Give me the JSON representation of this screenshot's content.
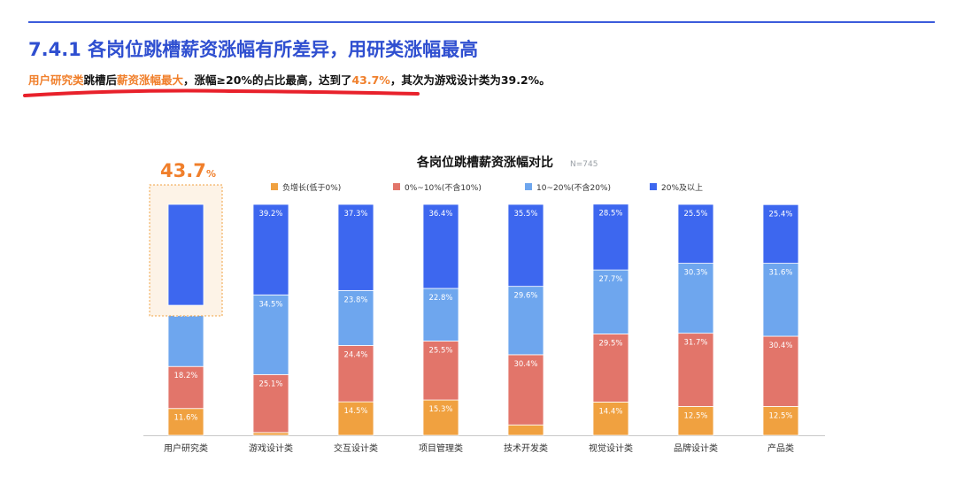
{
  "page": {
    "heading": "7.4.1 各岗位跳槽薪资涨幅有所差异，用研类涨幅最高",
    "subtitle": {
      "part1": "用户研究类",
      "part2": "跳槽后",
      "part3": "薪资涨幅最大",
      "part4": "，涨幅≥20%的占比最高，达到了",
      "part5": "43.7%",
      "part6": "，其次为游戏设计类为39.2%。"
    }
  },
  "colors": {
    "accent": "#2f4fd0",
    "highlight": "#f07f2b",
    "underline": "#e8212b",
    "series": [
      "#f0a140",
      "#e2756a",
      "#6ea6ee",
      "#3d67ef"
    ]
  },
  "chart_data": {
    "type": "bar",
    "stacked": true,
    "title": "各岗位跳槽薪资涨幅对比",
    "note": "N=745",
    "legend_position": "top",
    "categories": [
      "用户研究类",
      "游戏设计类",
      "交互设计类",
      "项目管理类",
      "技术开发类",
      "视觉设计类",
      "品牌设计类",
      "产品类"
    ],
    "series": [
      {
        "name": "负增长(低于0%)",
        "values": [
          11.6,
          1.2,
          14.5,
          15.3,
          4.5,
          14.4,
          12.5,
          12.5
        ]
      },
      {
        "name": "0%~10%(不含10%)",
        "values": [
          18.2,
          25.1,
          24.4,
          25.5,
          30.4,
          29.5,
          31.7,
          30.4
        ]
      },
      {
        "name": "10~20%(不含20%)",
        "values": [
          26.5,
          34.5,
          23.8,
          22.8,
          29.6,
          27.7,
          30.3,
          31.6
        ]
      },
      {
        "name": "20%及以上",
        "values": [
          43.7,
          39.2,
          37.3,
          36.4,
          35.5,
          28.5,
          25.5,
          25.4
        ]
      }
    ],
    "data_labels": [
      [
        "11.6%",
        "1.2%",
        "14.5%",
        "15.3%",
        "4.5%",
        "14.4%",
        "12.5%",
        "12.5%"
      ],
      [
        "18.2%",
        "25.1%",
        "24.4%",
        "25.5%",
        "30.4%",
        "29.5%",
        "31.7%",
        "30.4%"
      ],
      [
        "26.5%",
        "34.5%",
        "23.8%",
        "22.8%",
        "29.6%",
        "27.7%",
        "30.3%",
        "31.6%"
      ],
      [
        "",
        "39.2%",
        "37.3%",
        "36.4%",
        "35.5%",
        "28.5%",
        "25.5%",
        "25.4%"
      ]
    ],
    "ylim": [
      0,
      100
    ],
    "grid": false,
    "callout": {
      "category_index": 0,
      "value": "43.7",
      "unit": "%"
    }
  }
}
